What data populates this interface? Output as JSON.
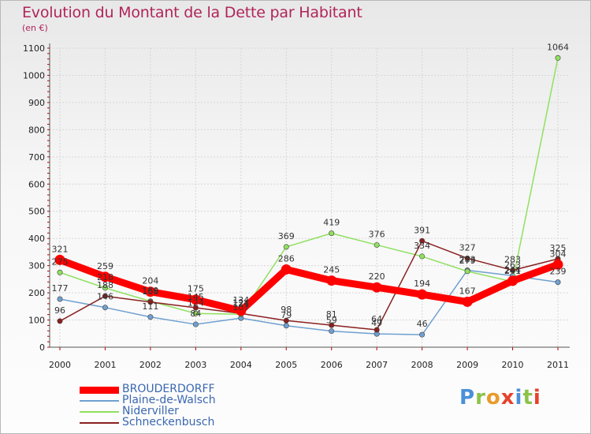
{
  "title": "Evolution du Montant de la Dette par Habitant",
  "subtitle": "(en €)",
  "logo": {
    "text": "Proxiti",
    "colors": [
      "#4a90d9",
      "#8bc34a",
      "#e89b2a",
      "#e8412a",
      "#4a90d9",
      "#8bc34a",
      "#e8412a"
    ]
  },
  "chart_data": {
    "type": "line",
    "title": "Evolution du Montant de la Dette par Habitant",
    "subtitle": "(en €)",
    "categories": [
      "2000",
      "2001",
      "2002",
      "2003",
      "2004",
      "2005",
      "2006",
      "2007",
      "2008",
      "2009",
      "2010",
      "2011"
    ],
    "y_ticks": [
      0,
      100,
      200,
      300,
      400,
      500,
      600,
      700,
      800,
      900,
      1000,
      1100
    ],
    "ylim": [
      0,
      1100
    ],
    "legend_position": "bottom-left",
    "series": [
      {
        "name": "BROUDERDORFF",
        "color": "#ff0000",
        "values": [
          321,
          259,
          204,
          175,
          134,
          286,
          245,
          220,
          194,
          167,
          244,
          304
        ],
        "labels": [
          "321",
          "259",
          "204",
          "175",
          "134",
          "286",
          "245",
          "220",
          "194",
          "167",
          "244",
          "304"
        ]
      },
      {
        "name": "Plaine-de-Walsch",
        "color": "#6fa0d0",
        "values": [
          177,
          146,
          111,
          84,
          107,
          79,
          59,
          49,
          46,
          283,
          263,
          239
        ],
        "labels": [
          "177",
          "146",
          "111",
          "84",
          "107",
          "79",
          "59",
          "49",
          "46",
          "283",
          "263",
          "239"
        ]
      },
      {
        "name": "Niderviller",
        "color": "#90e060",
        "values": [
          275,
          218,
          169,
          124,
          121,
          369,
          419,
          376,
          334,
          279,
          241,
          1064
        ],
        "labels": [
          "275",
          "218",
          "169",
          "124",
          "121",
          "369",
          "419",
          "376",
          "334",
          "279",
          "241",
          "1064"
        ]
      },
      {
        "name": "Schneckenbusch",
        "color": "#8a2020",
        "values": [
          96,
          188,
          166,
          145,
          124,
          98,
          81,
          64,
          391,
          327,
          283,
          325
        ],
        "labels": [
          "96",
          "188",
          "166",
          "145",
          "124",
          "98",
          "81",
          "64",
          "391",
          "327",
          "283",
          "325"
        ]
      }
    ]
  }
}
